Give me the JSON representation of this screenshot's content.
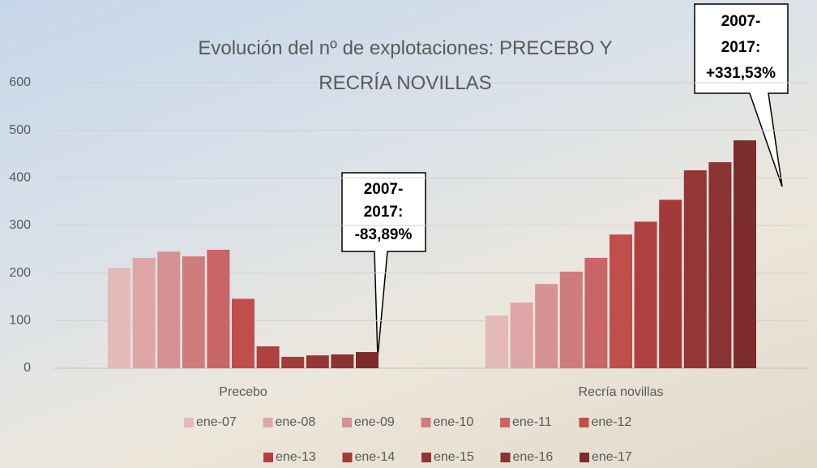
{
  "chart_data": {
    "type": "bar",
    "title": "Evolución del nº de explotaciones: PRECEBO Y RECRÍA NOVILLAS",
    "categories": [
      "Precebo",
      "Recría novillas"
    ],
    "series": [
      {
        "name": "ene-07",
        "color": "#e3b9ba",
        "values": [
          211,
          111
        ]
      },
      {
        "name": "ene-08",
        "color": "#dea5a6",
        "values": [
          232,
          138
        ]
      },
      {
        "name": "ene-09",
        "color": "#d69292",
        "values": [
          245,
          177
        ]
      },
      {
        "name": "ene-10",
        "color": "#cf7c7d",
        "values": [
          235,
          203
        ]
      },
      {
        "name": "ene-11",
        "color": "#c96566",
        "values": [
          249,
          232
        ]
      },
      {
        "name": "ene-12",
        "color": "#c04e4d",
        "values": [
          146,
          281
        ]
      },
      {
        "name": "ene-13",
        "color": "#b0403f",
        "values": [
          46,
          308
        ]
      },
      {
        "name": "ene-14",
        "color": "#a33a3a",
        "values": [
          24,
          354
        ]
      },
      {
        "name": "ene-15",
        "color": "#963535",
        "values": [
          27,
          416
        ]
      },
      {
        "name": "ene-16",
        "color": "#8b3233",
        "values": [
          29,
          433
        ]
      },
      {
        "name": "ene-17",
        "color": "#7d2c2d",
        "values": [
          34,
          479
        ]
      }
    ],
    "ylim": [
      0,
      600
    ],
    "yticks": [
      0,
      100,
      200,
      300,
      400,
      500,
      600
    ],
    "grid": true,
    "legend": "bottom",
    "annotations": [
      {
        "lines": [
          "2007-",
          "2017:",
          "-83,89%"
        ]
      },
      {
        "lines": [
          "2007-",
          "2017:",
          "+331,53%"
        ]
      }
    ]
  }
}
